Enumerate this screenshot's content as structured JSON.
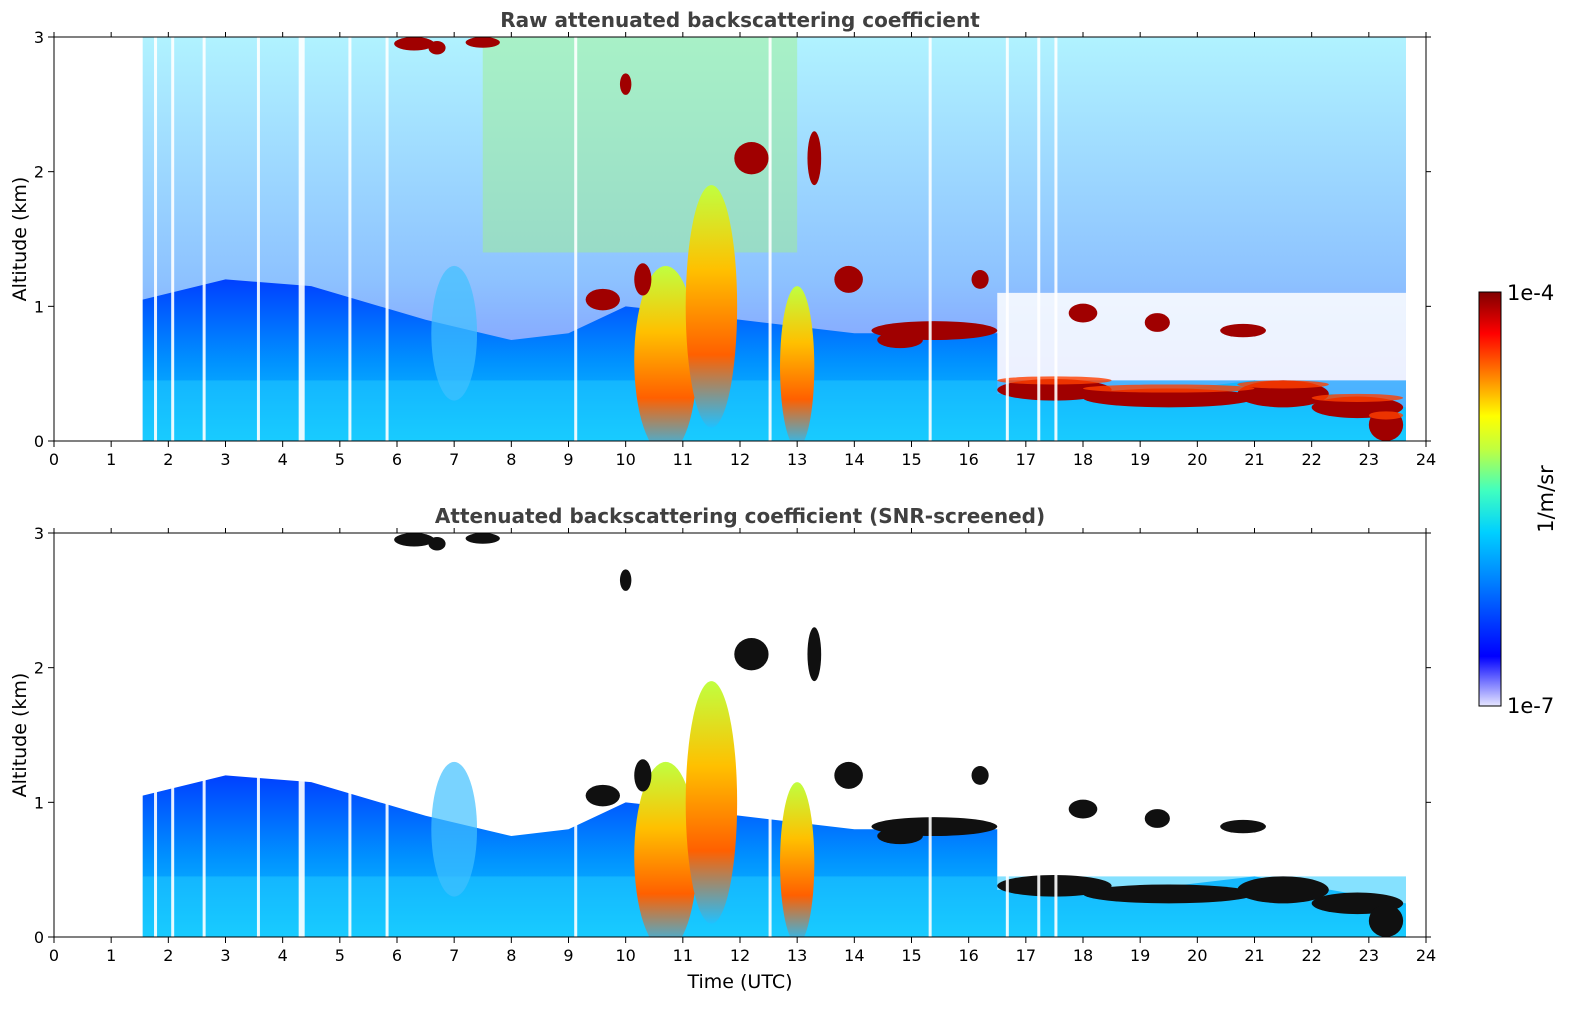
{
  "chart_data": [
    {
      "type": "heatmap",
      "title": "Raw attenuated backscattering coefficient",
      "xlabel": "",
      "ylabel": "Altitude (km)",
      "xlim": [
        0,
        24
      ],
      "ylim": [
        0,
        3
      ],
      "xticks": [
        "0",
        "1",
        "2",
        "3",
        "4",
        "5",
        "6",
        "7",
        "8",
        "9",
        "10",
        "11",
        "12",
        "13",
        "14",
        "15",
        "16",
        "17",
        "18",
        "19",
        "20",
        "21",
        "22",
        "23",
        "24"
      ],
      "yticks": [
        "0",
        "1",
        "2",
        "3"
      ],
      "data_start_utc": 1.55,
      "data_end_utc": 23.65,
      "features": {
        "clouds_km": [
          {
            "t0": 6.0,
            "t1": 8.0,
            "alt": 2.95
          },
          {
            "t0": 9.9,
            "t1": 10.1,
            "alt": 2.65
          },
          {
            "t0": 11.9,
            "t1": 12.5,
            "alt": 2.1
          },
          {
            "t0": 9.3,
            "t1": 9.9,
            "alt": 1.05
          },
          {
            "t0": 14.3,
            "t1": 16.5,
            "alt": 0.85
          },
          {
            "t0": 16.5,
            "t1": 23.65,
            "alt": 0.35
          }
        ]
      }
    },
    {
      "type": "heatmap",
      "title": "Attenuated backscattering coefficient (SNR-screened)",
      "xlabel": "Time (UTC)",
      "ylabel": "Altitude (km)",
      "xlim": [
        0,
        24
      ],
      "ylim": [
        0,
        3
      ],
      "xticks": [
        "0",
        "1",
        "2",
        "3",
        "4",
        "5",
        "6",
        "7",
        "8",
        "9",
        "10",
        "11",
        "12",
        "13",
        "14",
        "15",
        "16",
        "17",
        "18",
        "19",
        "20",
        "21",
        "22",
        "23",
        "24"
      ],
      "yticks": [
        "0",
        "1",
        "2",
        "3"
      ],
      "data_start_utc": 1.55,
      "data_end_utc": 23.65
    }
  ],
  "colorbar": {
    "label": "1/m/sr",
    "max_label": "1e-4",
    "min_label": "1e-7",
    "colormap": "jet",
    "colors": [
      "#e6e6ff",
      "#0000ff",
      "#00a0ff",
      "#00ffff",
      "#80ff80",
      "#ffff00",
      "#ff8000",
      "#ff0000",
      "#800000"
    ]
  }
}
